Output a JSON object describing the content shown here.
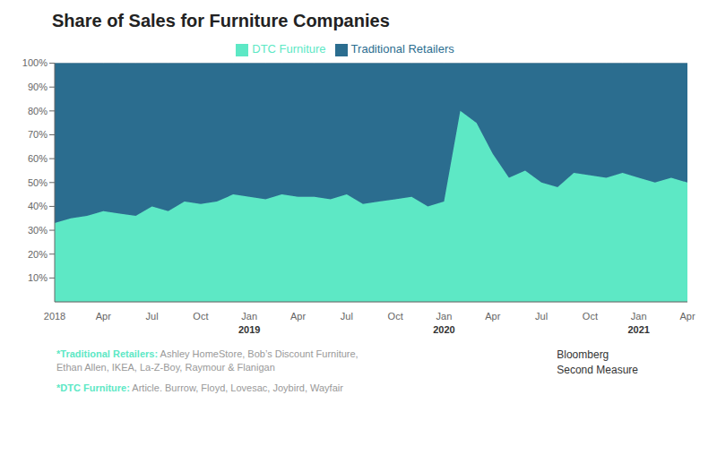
{
  "chart_data": {
    "type": "area",
    "title": "Share of Sales for Furniture Companies",
    "categories": [
      "2018",
      null,
      null,
      "Apr",
      null,
      null,
      "Jul",
      null,
      null,
      "Oct",
      null,
      null,
      "Jan\n2019",
      null,
      null,
      "Apr",
      null,
      null,
      "Jul",
      null,
      null,
      "Oct",
      null,
      null,
      "Jan\n2020",
      null,
      null,
      "Apr",
      null,
      null,
      "Jul",
      null,
      null,
      "Oct",
      null,
      null,
      "Jan\n2021",
      null,
      null,
      "Apr"
    ],
    "series": [
      {
        "name": "DTC Furniture",
        "color": "#5de8c5",
        "values": [
          33,
          35,
          36,
          38,
          37,
          36,
          40,
          38,
          42,
          41,
          42,
          45,
          44,
          43,
          45,
          44,
          44,
          43,
          45,
          41,
          42,
          43,
          44,
          40,
          42,
          80,
          75,
          62,
          52,
          55,
          50,
          48,
          54,
          53,
          52,
          54,
          52,
          50,
          52,
          50
        ]
      },
      {
        "name": "Traditional Retailers",
        "color": "#2b6d8f",
        "values": [
          67,
          65,
          64,
          62,
          63,
          64,
          60,
          62,
          58,
          59,
          58,
          55,
          56,
          57,
          55,
          56,
          56,
          57,
          55,
          59,
          58,
          57,
          56,
          60,
          58,
          20,
          25,
          38,
          48,
          45,
          50,
          52,
          46,
          47,
          48,
          46,
          48,
          50,
          48,
          50
        ]
      }
    ],
    "ylim": [
      0,
      100
    ],
    "yticks": [
      {
        "value": 10,
        "label": "10%"
      },
      {
        "value": 20,
        "label": "20%"
      },
      {
        "value": 30,
        "label": "30%"
      },
      {
        "value": 40,
        "label": "40%"
      },
      {
        "value": 50,
        "label": "50%"
      },
      {
        "value": 60,
        "label": "60%"
      },
      {
        "value": 70,
        "label": "70%"
      },
      {
        "value": 80,
        "label": "80%"
      },
      {
        "value": 90,
        "label": "90%"
      },
      {
        "value": 100,
        "label": "100%"
      }
    ],
    "grid": true,
    "legend": "top",
    "stacked": true,
    "annotations": [
      "*Traditional Retailers: Ashley HomeStore, Bob’s Discount Furniture,\nEthan Allen, IKEA, La-Z-Boy, Raymour & Flanigan",
      "*DTC Furniture: Article. Burrow, Floyd, Lovesac, Joybird, Wayfair",
      "Bloomberg\nSecond Measure"
    ]
  }
}
